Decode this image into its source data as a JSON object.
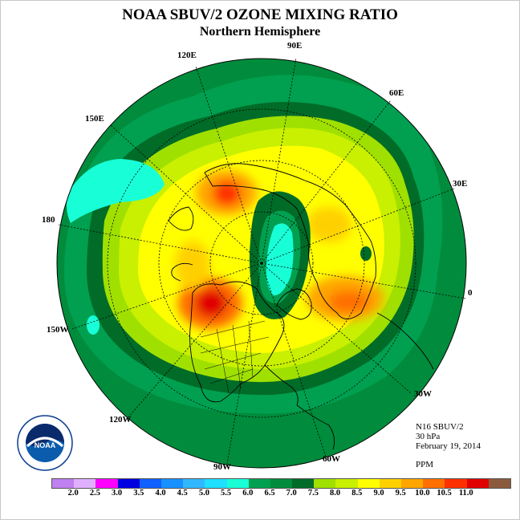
{
  "header": {
    "title": "NOAA SBUV/2 OZONE MIXING RATIO",
    "subtitle": "Northern Hemisphere"
  },
  "longitude_labels": [
    {
      "id": "90e",
      "text": "90E"
    },
    {
      "id": "120e",
      "text": "120E"
    },
    {
      "id": "60e",
      "text": "60E"
    },
    {
      "id": "150e",
      "text": "150E"
    },
    {
      "id": "30e",
      "text": "30E"
    },
    {
      "id": "180",
      "text": "180"
    },
    {
      "id": "0",
      "text": "0"
    },
    {
      "id": "150w",
      "text": "150W"
    },
    {
      "id": "30w",
      "text": "30W"
    },
    {
      "id": "120w",
      "text": "120W"
    },
    {
      "id": "60w",
      "text": "60W"
    },
    {
      "id": "90w",
      "text": "90W"
    }
  ],
  "info": {
    "instrument": "N16 SBUV/2",
    "level": "30 hPa",
    "date": "February 19, 2014",
    "units": "PPM"
  },
  "logo": {
    "text": "NOAA"
  },
  "colorbar": {
    "colors": [
      "#c080f0",
      "#e0b0ff",
      "#ff00ff",
      "#0000e0",
      "#1060ff",
      "#1890ff",
      "#30b8ff",
      "#20e0ff",
      "#18ffd8",
      "#00a050",
      "#008c3c",
      "#006c28",
      "#a0e000",
      "#c8f000",
      "#ffff00",
      "#ffd000",
      "#ffa500",
      "#ff7000",
      "#ff3000",
      "#e00000",
      "#8b5a3c"
    ],
    "ticks": [
      "2.0",
      "2.5",
      "3.0",
      "3.5",
      "4.0",
      "4.5",
      "5.0",
      "5.5",
      "6.0",
      "6.5",
      "7.0",
      "7.5",
      "8.0",
      "8.5",
      "9.0",
      "9.5",
      "10.0",
      "10.5",
      "11.0"
    ]
  }
}
